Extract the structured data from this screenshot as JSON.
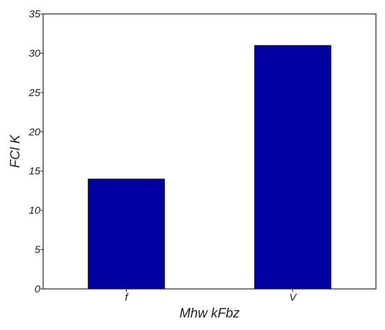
{
  "chart_data": {
    "type": "bar",
    "title": "",
    "categories": [
      "f",
      "V"
    ],
    "values": [
      14,
      31
    ],
    "xlabel": "Mhw kFbz",
    "ylabel": "FCl K",
    "ylim": [
      0,
      35
    ],
    "yticks": [
      0,
      5,
      10,
      15,
      20,
      25,
      30,
      35
    ],
    "grid": false,
    "legend": "none",
    "bar_color": "#0000a0"
  }
}
